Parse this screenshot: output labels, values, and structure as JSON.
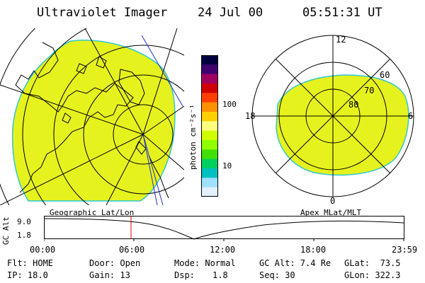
{
  "header": {
    "instrument": "Ultraviolet Imager",
    "date": "24 Jul 00",
    "time": "05:51:31 UT"
  },
  "colorbar": {
    "unit_label": "photon cm⁻²s⁻¹",
    "tick_high": "100",
    "tick_low": "10",
    "colors": [
      "#000040",
      "#400070",
      "#a00060",
      "#d00000",
      "#ff4000",
      "#ff9000",
      "#ffd000",
      "#ffff80",
      "#d0ff00",
      "#90ff00",
      "#40e000",
      "#00d060",
      "#00c0c0",
      "#a0e0ff",
      "#e0f0ff"
    ]
  },
  "geo_panel": {
    "label": "Geographic Lat/Lon",
    "fill_color": "#e6f21e"
  },
  "mag_panel": {
    "label": "Apex MLat/MLT",
    "mlt_top": "12",
    "mlt_left": "18",
    "mlt_right": "6",
    "mlt_bottom": "0",
    "lat_60": "60",
    "lat_70": "70",
    "lat_80": "80"
  },
  "altitude_plot": {
    "axis_label": "GC Alt",
    "y_top": "9.0",
    "y_bottom": "1.8",
    "x_ticks": [
      "00:00",
      "06:00",
      "12:00",
      "18:00",
      "23:59"
    ],
    "marker_color": "#e00000"
  },
  "info": {
    "flt": "Flt: HOME",
    "ip": "IP: 18.0",
    "door": "Door: Open",
    "gain": "Gain: 13",
    "mode": "Mode: Normal",
    "dsp_label": "Dsp:",
    "dsp_value": "1.8",
    "gc_alt": "GC Alt: 7.4 Re",
    "seq": "Seq: 30",
    "glat": "GLat:  73.5",
    "glon": "GLon: 322.3"
  }
}
